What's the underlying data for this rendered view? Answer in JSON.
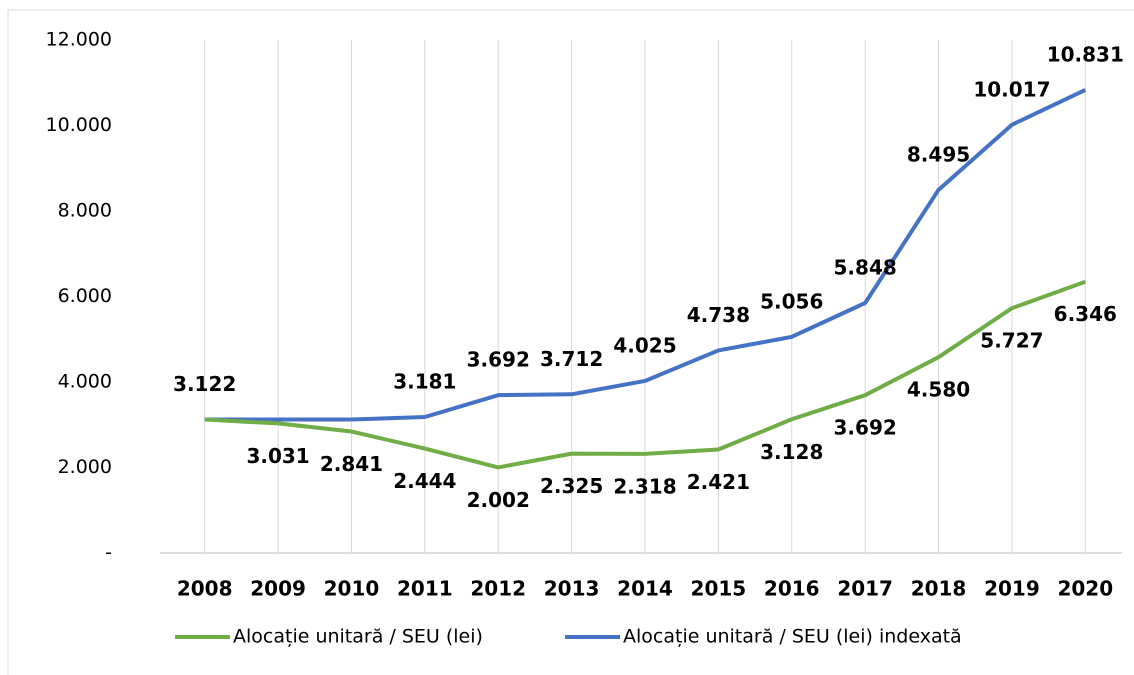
{
  "chart_data": {
    "type": "line",
    "categories": [
      "2008",
      "2009",
      "2010",
      "2011",
      "2012",
      "2013",
      "2014",
      "2015",
      "2016",
      "2017",
      "2018",
      "2019",
      "2020"
    ],
    "series": [
      {
        "name": "Alocație unitară / SEU (lei)",
        "color": "#70ad47",
        "values": [
          3122,
          3031,
          2841,
          2444,
          2002,
          2325,
          2318,
          2421,
          3128,
          3692,
          4580,
          5727,
          6346
        ],
        "value_labels": [
          null,
          "3.031",
          "2.841",
          "2.444",
          "2.002",
          "2.325",
          "2.318",
          "2.421",
          "3.128",
          "3.692",
          "4.580",
          "5.727",
          "6.346"
        ]
      },
      {
        "name": "Alocație unitară / SEU (lei) indexată",
        "color": "#4472c4",
        "values": [
          3122,
          3122,
          3122,
          3181,
          3692,
          3712,
          4025,
          4738,
          5056,
          5848,
          8495,
          10017,
          10831
        ],
        "value_labels": [
          "3.122",
          null,
          null,
          "3.181",
          "3.692",
          "3.712",
          "4.025",
          "4.738",
          "5.056",
          "5.848",
          "8.495",
          "10.017",
          "10.831"
        ]
      }
    ],
    "ylim": [
      0,
      12000
    ],
    "yticks": [
      {
        "value": 0,
        "label": "-"
      },
      {
        "value": 2000,
        "label": "2.000"
      },
      {
        "value": 4000,
        "label": "4.000"
      },
      {
        "value": 6000,
        "label": "6.000"
      },
      {
        "value": 8000,
        "label": "8.000"
      },
      {
        "value": 10000,
        "label": "10.000"
      },
      {
        "value": 12000,
        "label": "12.000"
      }
    ],
    "grid": true,
    "legend": "bottom"
  }
}
